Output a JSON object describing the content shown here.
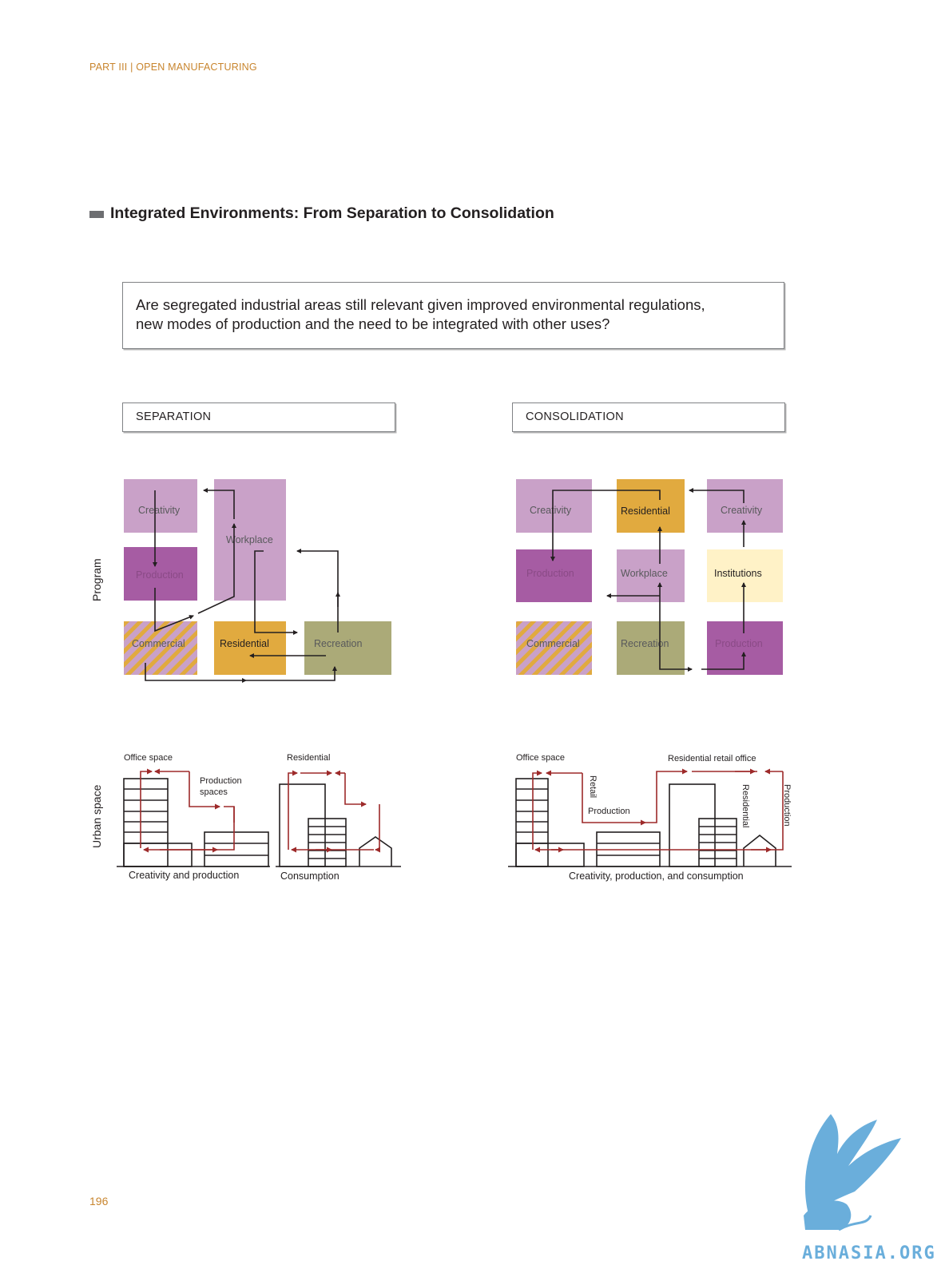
{
  "header": {
    "running_head": "PART III | OPEN MANUFACTURING"
  },
  "section": {
    "title": "Integrated Environments: From Separation to Consolidation"
  },
  "question": {
    "line1": "Are segregated industrial areas still relevant given improved environmental regulations,",
    "line2": "new modes of production and the need to be integrated with other uses?"
  },
  "panels": {
    "separation": "SEPARATION",
    "consolidation": "CONSOLIDATION"
  },
  "axis_labels": {
    "program": "Program",
    "urban_space": "Urban space"
  },
  "separation_program": {
    "creativity": "Creativity",
    "workplace": "Workplace",
    "production": "Production",
    "commercial": "Commercial",
    "residential": "Residential",
    "recreation": "Recreation"
  },
  "consolidation_program": {
    "creativity_left": "Creativity",
    "residential": "Residential",
    "creativity_right": "Creativity",
    "production_left": "Production",
    "workplace": "Workplace",
    "institutions": "Institutions",
    "commercial": "Commercial",
    "recreation": "Recreation",
    "production_right": "Production"
  },
  "separation_urban": {
    "office_space": "Office space",
    "production_spaces_1": "Production",
    "production_spaces_2": "spaces",
    "residential": "Residential",
    "caption_left": "Creativity and production",
    "caption_right": "Consumption"
  },
  "consolidation_urban": {
    "office_space": "Office space",
    "retail": "Retail",
    "production": "Production",
    "residential_retail_office": "Residential retail office",
    "residential_vertical": "Residential",
    "production_vertical": "Production",
    "caption": "Creativity, production, and consumption"
  },
  "colors": {
    "light_purple": "#c9a1c8",
    "dark_purple": "#a65ca3",
    "gold": "#e1aa3f",
    "olive": "#abaa78",
    "cream": "#fff2c7",
    "arrow_red": "#9d2a2a",
    "accent_orange": "#c8852e"
  },
  "footer": {
    "page_number": "196"
  }
}
